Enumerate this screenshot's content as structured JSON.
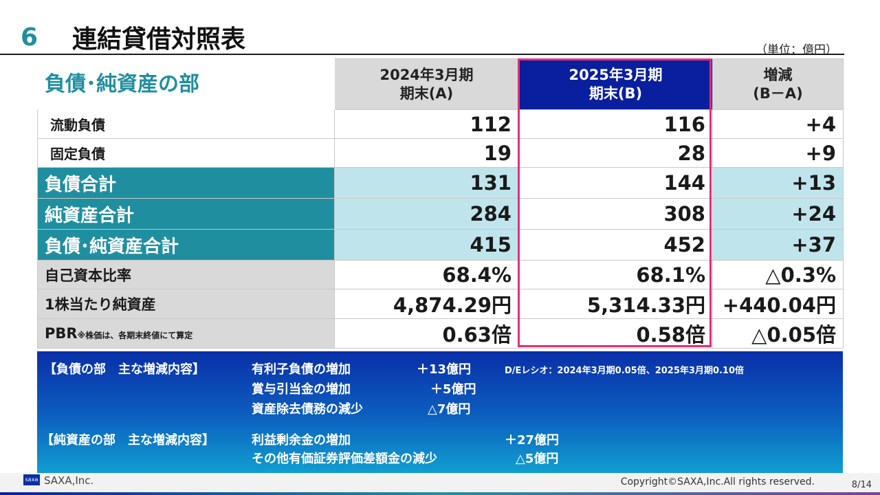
{
  "slide": {
    "number": "6",
    "title": "連結貸借対照表",
    "unit": "（単位：億円）"
  },
  "table": {
    "section_title": "負債･純資産の部",
    "headers": {
      "col_a": [
        "2024年3月期",
        "期末(A)"
      ],
      "col_b": [
        "2025年3月期",
        "期末(B)"
      ],
      "col_diff": [
        "増減",
        "(B－A)"
      ]
    },
    "rows": [
      {
        "label": "流動負債",
        "a": "112",
        "b": "116",
        "diff": "+4"
      },
      {
        "label": "固定負債",
        "a": "19",
        "b": "28",
        "diff": "+9"
      },
      {
        "label": "負債合計",
        "a": "131",
        "b": "144",
        "diff": "+13"
      },
      {
        "label": "純資産合計",
        "a": "284",
        "b": "308",
        "diff": "+24"
      },
      {
        "label": "負債･純資産合計",
        "a": "415",
        "b": "452",
        "diff": "+37"
      },
      {
        "label": "自己資本比率",
        "a": "68.4%",
        "b": "68.1%",
        "diff": "△0.3%"
      },
      {
        "label": "1株当たり純資産",
        "a": "4,874.29円",
        "b": "5,314.33円",
        "diff": "+440.04円"
      },
      {
        "label": "PBR",
        "note": "※株価は、各期末終値にて算定",
        "a": "0.63倍",
        "b": "0.58倍",
        "diff": "△0.05倍"
      }
    ]
  },
  "summary": {
    "liabilities_heading": "【負債の部　主な増減内容】",
    "liabilities_items": [
      {
        "label": "有利子負債の増加",
        "value": "＋13億円"
      },
      {
        "label": "賞与引当金の増加",
        "value": "＋5億円"
      },
      {
        "label": "資産除去債務の減少",
        "value": "△7億円"
      }
    ],
    "de_ratio": "D/Eレシオ：2024年3月期0.05倍、2025年3月期0.10倍",
    "equity_heading": "【純資産の部　主な増減内容】",
    "equity_items": [
      {
        "label": "利益剰余金の増加",
        "value": "＋27億円"
      },
      {
        "label": "その他有価証券評価差額金の減少",
        "value": "△5億円"
      }
    ]
  },
  "footer": {
    "logo_text": "saxa",
    "company": "SAXA,Inc.",
    "copyright": "Copyright©SAXA,Inc.All rights reserved.",
    "page": "8/14"
  },
  "colors": {
    "accent_teal": "#1f8fa0",
    "header_navy": "#0a1f9e",
    "highlight_pink": "#e0307a",
    "light_teal": "#bfe4ec"
  }
}
